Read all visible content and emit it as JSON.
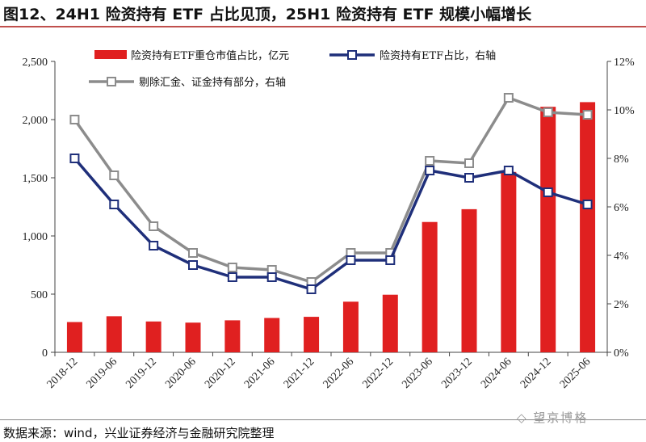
{
  "header": {
    "title": "图12、24H1 险资持有 ETF 占比见顶，25H1 险资持有 ETF 规模小幅增长"
  },
  "footer": {
    "source": "数据来源：wind，兴业证券经济与金融研究院整理",
    "watermark": "◇ 望京博格"
  },
  "chart_data": {
    "type": "bar",
    "categories": [
      "2018-12",
      "2019-06",
      "2019-12",
      "2020-06",
      "2020-12",
      "2021-06",
      "2021-12",
      "2022-06",
      "2022-12",
      "2023-06",
      "2023-12",
      "2024-06",
      "2024-12",
      "2025-06"
    ],
    "series": [
      {
        "name": "险资持有ETF重仓市值占比，亿元",
        "type": "bar",
        "axis": "left",
        "color": "#e02020",
        "values": [
          260,
          310,
          265,
          255,
          275,
          295,
          305,
          435,
          495,
          1120,
          1230,
          1550,
          2110,
          2150
        ]
      },
      {
        "name": "险资持有ETF占比，右轴",
        "type": "line",
        "axis": "right",
        "color": "#1f2f7a",
        "values": [
          0.08,
          0.061,
          0.044,
          0.036,
          0.031,
          0.031,
          0.026,
          0.038,
          0.038,
          0.075,
          0.072,
          0.075,
          0.066,
          0.061
        ]
      },
      {
        "name": "剔除汇金、证金持有部分，右轴",
        "type": "line",
        "axis": "right",
        "color": "#8c8c8c",
        "values": [
          0.096,
          0.073,
          0.052,
          0.041,
          0.035,
          0.034,
          0.029,
          0.041,
          0.041,
          0.079,
          0.078,
          0.105,
          0.099,
          0.098
        ]
      }
    ],
    "y_left": {
      "ticks": [
        "0",
        "500",
        "1,000",
        "1,500",
        "2,000",
        "2,500"
      ],
      "ylim": [
        0,
        2500
      ]
    },
    "y_right": {
      "ticks": [
        "0%",
        "2%",
        "4%",
        "6%",
        "8%",
        "10%",
        "12%"
      ],
      "ylim": [
        0,
        0.12
      ]
    },
    "grid": false,
    "legend": "top"
  }
}
